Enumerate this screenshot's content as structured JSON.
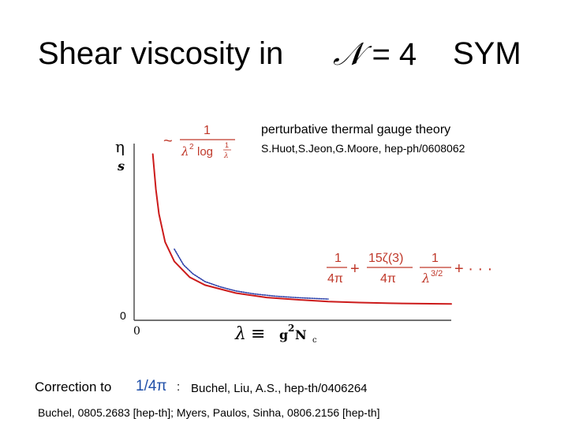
{
  "title": {
    "left": "Shear viscosity in",
    "math_symbol": "𝒩",
    "math_rest": " = 4",
    "right": "SYM"
  },
  "chart_data": {
    "type": "line",
    "y_numerator": "η",
    "y_denominator": "s",
    "y_zero_label": "0",
    "x_zero_label": "0",
    "x_label": {
      "lambda": "λ",
      "equiv": "≡",
      "g": "g",
      "exponent": "2",
      "N": "N",
      "subscript": "c"
    },
    "grid": false,
    "series": [
      {
        "color": "#cc1b1b",
        "style": "solid",
        "x": [
          0.3,
          0.4,
          0.5,
          0.7,
          1.0,
          1.5,
          2.0,
          3.0,
          4.0,
          5.0,
          6.0,
          7.0,
          8.0,
          9.0,
          10.0
        ],
        "y": [
          9.0,
          7.0,
          5.6,
          4.0,
          2.9,
          2.0,
          1.55,
          1.1,
          0.85,
          0.72,
          0.62,
          0.56,
          0.52,
          0.5,
          0.48
        ]
      },
      {
        "color": "#2b3fa8",
        "style": "dotted",
        "x": [
          1.0,
          1.3,
          1.6,
          2.0,
          2.5,
          3.0,
          3.6,
          4.3,
          5.0,
          6.0
        ],
        "y": [
          3.6,
          2.7,
          2.2,
          1.75,
          1.45,
          1.22,
          1.05,
          0.92,
          0.84,
          0.76
        ]
      }
    ],
    "annotations": {
      "weak_tilde": "~",
      "weak_num": "1",
      "weak_den_lambda": "λ",
      "weak_den_pow": "2",
      "weak_den_log": "log",
      "weak_den_frac_num": "1",
      "weak_den_frac_den": "λ",
      "strong_a_num": "1",
      "strong_a_den": "4π",
      "plus1": "+",
      "strong_b_num": "15ζ(3)",
      "strong_b_den": "4π",
      "strong_c_num": "1",
      "strong_c_den_lambda": "λ",
      "strong_c_den_pow": "3/2",
      "ellipsis": "+ · · ·"
    }
  },
  "ref_perturbative": {
    "heading": "perturbative thermal gauge theory",
    "citation": "S.Huot,S.Jeon,G.Moore, hep-ph/0608062"
  },
  "correction": {
    "label": "Correction to",
    "value": "1/4π",
    "colon": ":",
    "citation": "Buchel, Liu, A.S., hep-th/0406264"
  },
  "footer_citation": "Buchel, 0805.2683 [hep-th]; Myers, Paulos, Sinha, 0806.2156 [hep-th]"
}
